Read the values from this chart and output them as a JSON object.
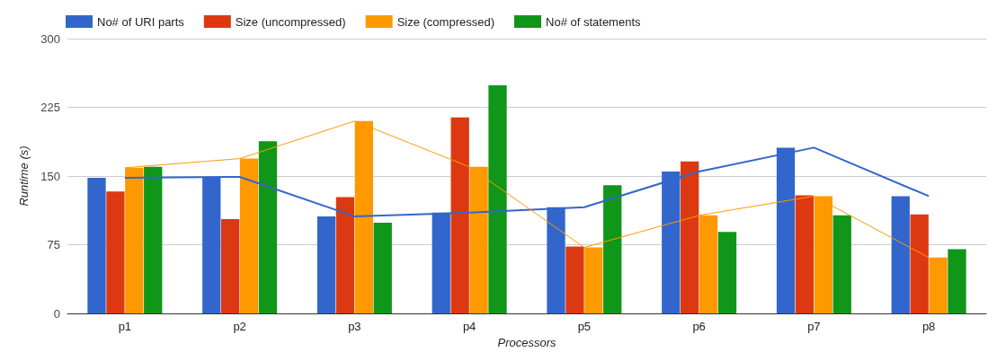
{
  "chart_data": {
    "type": "bar",
    "xlabel": "Processors",
    "ylabel": "Runtime (s)",
    "categories": [
      "p1",
      "p2",
      "p3",
      "p4",
      "p5",
      "p6",
      "p7",
      "p8"
    ],
    "series": [
      {
        "name": "No# of URI parts",
        "color": "#3366cc",
        "values": [
          148,
          149,
          106,
          110,
          116,
          155,
          181,
          128
        ]
      },
      {
        "name": "Size (uncompressed)",
        "color": "#dc3912",
        "values": [
          133,
          103,
          127,
          214,
          73,
          166,
          129,
          108
        ]
      },
      {
        "name": "Size (compressed)",
        "color": "#ff9900",
        "values": [
          159,
          169,
          210,
          160,
          72,
          107,
          128,
          61
        ]
      },
      {
        "name": "No# of statements",
        "color": "#109618",
        "values": [
          160,
          188,
          99,
          249,
          140,
          89,
          107,
          70
        ]
      },
      {
        "type": "line",
        "color": "#3366cc",
        "values": [
          148,
          149,
          106,
          110,
          116,
          155,
          181,
          128
        ]
      },
      {
        "type": "line",
        "color": "#ff9900",
        "values": [
          159,
          169,
          210,
          160,
          72,
          107,
          128,
          61
        ]
      }
    ],
    "ylim": [
      0,
      300
    ],
    "yticks": [
      0,
      75,
      150,
      225,
      300
    ],
    "grid": "y",
    "legend": "top left",
    "marker": "none",
    "line_style": "solid"
  }
}
